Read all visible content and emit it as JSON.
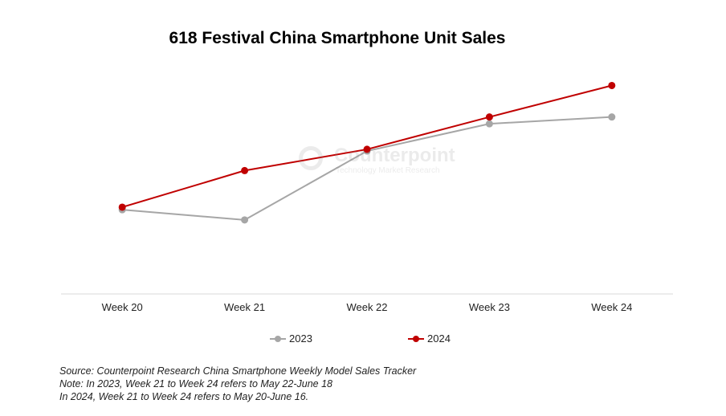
{
  "chart_data": {
    "type": "line",
    "title": "618 Festival China Smartphone Unit Sales",
    "categories": [
      "Week 20",
      "Week 21",
      "Week 22",
      "Week 23",
      "Week 24"
    ],
    "series": [
      {
        "name": "2023",
        "color": "#a6a6a6",
        "values": [
          99,
          87,
          168,
          200,
          208
        ]
      },
      {
        "name": "2024",
        "color": "#c00000",
        "values": [
          102,
          145,
          170,
          208,
          245
        ]
      }
    ],
    "ylim": [
      0,
      270
    ],
    "grid": false,
    "y_axis_labels_shown": false,
    "legend": "bottom-center"
  },
  "watermark": {
    "name": "Counterpoint",
    "tagline": "Technology Market Research"
  },
  "notes": [
    "Source: Counterpoint Research China Smartphone Weekly Model Sales Tracker",
    "Note: In 2023, Week 21 to Week 24 refers to May 22-June 18",
    "In 2024, Week 21 to Week 24 refers to May 20-June 16."
  ]
}
